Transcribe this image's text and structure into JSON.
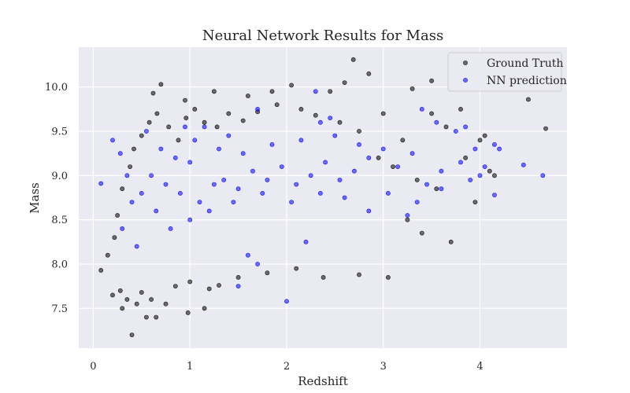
{
  "chart_data": {
    "type": "scatter",
    "title": "Neural Network Results for Mass",
    "xlabel": "Redshift",
    "ylabel": "Mass",
    "xlim": [
      -0.15,
      4.9
    ],
    "ylim": [
      7.05,
      10.45
    ],
    "xticks": [
      0,
      1,
      2,
      3,
      4
    ],
    "yticks": [
      7.5,
      8.0,
      8.5,
      9.0,
      9.5,
      10.0
    ],
    "xtick_labels": [
      "0",
      "1",
      "2",
      "3",
      "4"
    ],
    "ytick_labels": [
      "7.5",
      "8.0",
      "8.5",
      "9.0",
      "9.5",
      "10.0"
    ],
    "grid": true,
    "legend_position": "top-right",
    "series": [
      {
        "name": "Ground Truth",
        "color": "#000000",
        "points": [
          [
            0.08,
            7.93
          ],
          [
            0.4,
            7.2
          ],
          [
            0.3,
            7.5
          ],
          [
            0.55,
            7.4
          ],
          [
            0.65,
            7.4
          ],
          [
            0.98,
            7.45
          ],
          [
            1.15,
            7.5
          ],
          [
            0.7,
            10.03
          ],
          [
            0.62,
            9.93
          ],
          [
            2.69,
            10.31
          ],
          [
            2.85,
            10.15
          ],
          [
            3.5,
            10.07
          ],
          [
            4.5,
            9.86
          ],
          [
            4.68,
            9.53
          ],
          [
            3.05,
            7.85
          ],
          [
            2.75,
            7.88
          ],
          [
            2.38,
            7.85
          ],
          [
            1.3,
            7.76
          ],
          [
            3.0,
            9.7
          ],
          [
            3.3,
            9.98
          ],
          [
            3.5,
            9.7
          ],
          [
            0.2,
            7.65
          ],
          [
            0.28,
            7.7
          ],
          [
            0.35,
            7.6
          ],
          [
            0.45,
            7.55
          ],
          [
            0.5,
            7.68
          ],
          [
            0.6,
            7.6
          ],
          [
            0.75,
            7.55
          ],
          [
            0.85,
            7.75
          ],
          [
            1.0,
            7.8
          ],
          [
            1.2,
            7.72
          ],
          [
            1.5,
            7.85
          ],
          [
            1.8,
            7.9
          ],
          [
            2.1,
            7.95
          ],
          [
            0.95,
            9.85
          ],
          [
            1.25,
            9.95
          ],
          [
            1.6,
            9.9
          ],
          [
            1.85,
            9.95
          ],
          [
            2.05,
            10.02
          ],
          [
            2.45,
            9.95
          ],
          [
            2.6,
            10.05
          ],
          [
            3.4,
            8.35
          ],
          [
            3.25,
            8.5
          ],
          [
            3.7,
            8.25
          ],
          [
            3.95,
            8.7
          ],
          [
            4.15,
            9.0
          ],
          [
            4.0,
            9.4
          ],
          [
            3.65,
            9.55
          ],
          [
            3.8,
            9.75
          ],
          [
            3.2,
            9.4
          ],
          [
            2.95,
            9.2
          ],
          [
            3.1,
            9.1
          ],
          [
            3.35,
            8.95
          ],
          [
            3.55,
            8.85
          ],
          [
            3.85,
            9.2
          ],
          [
            4.05,
            9.45
          ],
          [
            4.1,
            9.05
          ],
          [
            0.15,
            8.1
          ],
          [
            0.22,
            8.3
          ],
          [
            0.25,
            8.55
          ],
          [
            0.3,
            8.85
          ],
          [
            0.38,
            9.1
          ],
          [
            0.42,
            9.3
          ],
          [
            0.5,
            9.45
          ],
          [
            0.58,
            9.6
          ],
          [
            0.66,
            9.7
          ],
          [
            0.78,
            9.55
          ],
          [
            0.88,
            9.4
          ],
          [
            0.96,
            9.65
          ],
          [
            1.05,
            9.75
          ],
          [
            1.15,
            9.6
          ],
          [
            1.28,
            9.55
          ],
          [
            1.4,
            9.7
          ],
          [
            1.55,
            9.62
          ],
          [
            1.7,
            9.72
          ],
          [
            1.9,
            9.8
          ],
          [
            2.15,
            9.75
          ],
          [
            2.3,
            9.68
          ],
          [
            2.55,
            9.6
          ],
          [
            2.75,
            9.5
          ]
        ]
      },
      {
        "name": "NN prediction",
        "color": "#0000ff",
        "points": [
          [
            0.08,
            8.91
          ],
          [
            0.2,
            9.4
          ],
          [
            0.28,
            9.25
          ],
          [
            0.35,
            9.0
          ],
          [
            0.4,
            8.7
          ],
          [
            0.55,
            9.5
          ],
          [
            0.7,
            9.3
          ],
          [
            0.85,
            9.2
          ],
          [
            1.0,
            9.15
          ],
          [
            1.4,
            9.45
          ],
          [
            1.7,
            9.75
          ],
          [
            2.3,
            9.95
          ],
          [
            2.35,
            9.6
          ],
          [
            3.4,
            9.75
          ],
          [
            3.55,
            9.6
          ],
          [
            3.75,
            9.5
          ],
          [
            3.95,
            9.3
          ],
          [
            4.15,
            9.35
          ],
          [
            4.2,
            9.3
          ],
          [
            4.45,
            9.12
          ],
          [
            4.65,
            9.0
          ],
          [
            4.0,
            9.0
          ],
          [
            4.15,
            8.78
          ],
          [
            3.6,
            8.85
          ],
          [
            3.25,
            8.55
          ],
          [
            2.85,
            8.6
          ],
          [
            2.2,
            8.25
          ],
          [
            1.7,
            8.0
          ],
          [
            1.6,
            8.1
          ],
          [
            1.5,
            7.75
          ],
          [
            2.0,
            7.58
          ],
          [
            1.0,
            8.5
          ],
          [
            1.1,
            8.7
          ],
          [
            1.25,
            8.9
          ],
          [
            1.35,
            8.95
          ],
          [
            1.5,
            8.85
          ],
          [
            1.65,
            9.05
          ],
          [
            1.8,
            8.95
          ],
          [
            1.95,
            9.1
          ],
          [
            2.1,
            8.9
          ],
          [
            2.25,
            9.0
          ],
          [
            2.4,
            9.15
          ],
          [
            2.55,
            8.95
          ],
          [
            2.7,
            9.05
          ],
          [
            2.85,
            9.2
          ],
          [
            3.0,
            9.3
          ],
          [
            3.15,
            9.1
          ],
          [
            3.3,
            9.25
          ],
          [
            3.45,
            8.9
          ],
          [
            3.6,
            9.05
          ],
          [
            3.8,
            9.15
          ],
          [
            3.9,
            8.95
          ],
          [
            0.5,
            8.8
          ],
          [
            0.6,
            9.0
          ],
          [
            0.65,
            8.6
          ],
          [
            0.75,
            8.9
          ],
          [
            0.9,
            8.8
          ],
          [
            1.2,
            8.6
          ],
          [
            1.45,
            8.7
          ],
          [
            1.75,
            8.8
          ],
          [
            2.05,
            8.7
          ],
          [
            2.35,
            8.8
          ],
          [
            2.6,
            8.75
          ],
          [
            0.3,
            8.4
          ],
          [
            0.45,
            8.2
          ],
          [
            0.8,
            8.4
          ],
          [
            1.05,
            9.4
          ],
          [
            1.3,
            9.3
          ],
          [
            1.55,
            9.25
          ],
          [
            1.85,
            9.35
          ],
          [
            2.15,
            9.4
          ],
          [
            2.5,
            9.45
          ],
          [
            2.75,
            9.35
          ],
          [
            3.05,
            8.8
          ],
          [
            3.35,
            8.7
          ],
          [
            0.95,
            9.55
          ],
          [
            1.15,
            9.55
          ],
          [
            2.45,
            9.65
          ],
          [
            3.85,
            9.55
          ],
          [
            4.05,
            9.1
          ]
        ]
      }
    ]
  }
}
